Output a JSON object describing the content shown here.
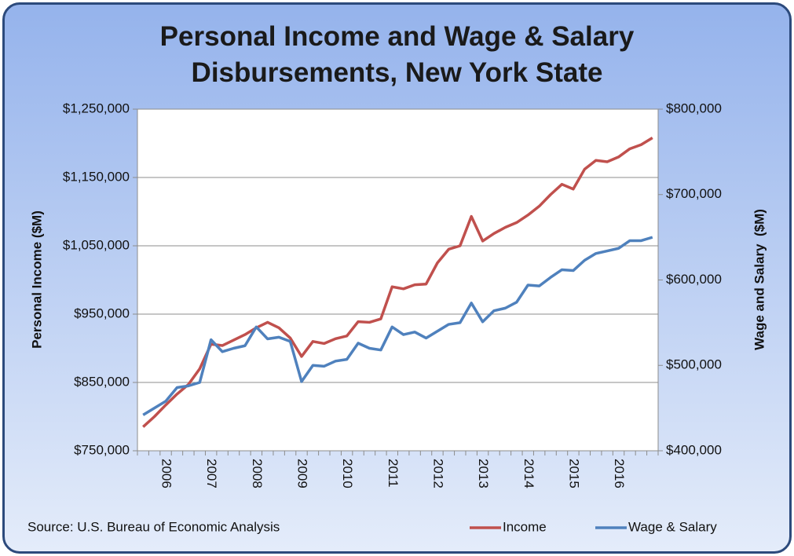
{
  "chart_data": {
    "type": "line",
    "title": "Personal Income and Wage & Salary Disbursements, New York State",
    "y_label": "Personal Income ($M)",
    "y2_label": "Wage and Salary  ($M)",
    "source": "Source: U.S. Bureau of Economic Analysis",
    "categories": [
      null,
      null,
      "2006",
      null,
      null,
      null,
      "2007",
      null,
      null,
      null,
      "2008",
      null,
      null,
      null,
      "2009",
      null,
      null,
      null,
      "2010",
      null,
      null,
      null,
      "2011",
      null,
      null,
      null,
      "2012",
      null,
      null,
      null,
      "2013",
      null,
      null,
      null,
      "2014",
      null,
      null,
      null,
      "2015",
      null,
      null,
      null,
      "2016",
      null,
      null,
      null
    ],
    "series": [
      {
        "name": "Income",
        "color": "#c0504d",
        "values": [
          785000,
          800000,
          817000,
          833000,
          847000,
          870000,
          906000,
          904000,
          912000,
          920000,
          930000,
          938000,
          930000,
          915000,
          888000,
          910000,
          907000,
          914000,
          918000,
          939000,
          938000,
          943000,
          990000,
          987000,
          993000,
          994000,
          1025000,
          1045000,
          1050000,
          1093000,
          1057000,
          1068000,
          1077000,
          1084000,
          1095000,
          1108000,
          1125000,
          1140000,
          1133000,
          1162000,
          1175000,
          1173000,
          1180000,
          1192000,
          1198000,
          1208000
        ]
      },
      {
        "name": "Wage & Salary",
        "color": "#4f81bd",
        "axis": "y2",
        "values": [
          442000,
          450000,
          458000,
          474000,
          476000,
          480000,
          530000,
          516000,
          520000,
          523000,
          545000,
          531000,
          533000,
          528000,
          481000,
          500000,
          499000,
          505000,
          507000,
          526000,
          520000,
          518000,
          545000,
          536000,
          539000,
          532000,
          540000,
          548000,
          550000,
          573000,
          551000,
          564000,
          567000,
          574000,
          594000,
          593000,
          603000,
          612000,
          611000,
          623000,
          631000,
          634000,
          637000,
          646000,
          646000,
          650000
        ]
      }
    ],
    "ylim": [
      750000,
      1250000
    ],
    "yticks": [
      {
        "value": 750000,
        "label": "$750,000"
      },
      {
        "value": 850000,
        "label": "$850,000"
      },
      {
        "value": 950000,
        "label": "$950,000"
      },
      {
        "value": 1050000,
        "label": "$1,050,000"
      },
      {
        "value": 1150000,
        "label": "$1,150,000"
      },
      {
        "value": 1250000,
        "label": "$1,250,000"
      }
    ],
    "y2lim": [
      400000,
      800000
    ],
    "y2ticks": [
      {
        "value": 400000,
        "label": "$400,000"
      },
      {
        "value": 500000,
        "label": "$500,000"
      },
      {
        "value": 600000,
        "label": "$600,000"
      },
      {
        "value": 700000,
        "label": "$700,000"
      },
      {
        "value": 800000,
        "label": "$800,000"
      }
    ],
    "grid": true,
    "legend": "bottom-right"
  }
}
